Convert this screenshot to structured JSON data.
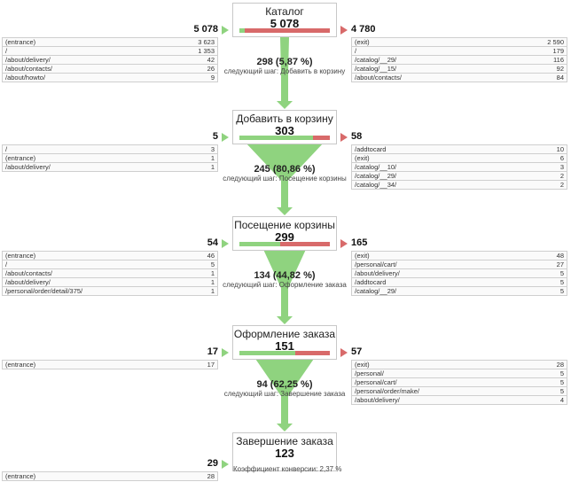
{
  "colors": {
    "accent_green": "#8fd37f",
    "accent_red": "#d86a6a"
  },
  "stages": [
    {
      "name": "Каталог",
      "count": "5 078",
      "green_fraction": 0.058,
      "entries": "5 078",
      "exits": "4 780",
      "entry_rows": [
        [
          "(entrance)",
          "3 623"
        ],
        [
          "/",
          "1 353"
        ],
        [
          "/about/delivery/",
          "42"
        ],
        [
          "/about/contacts/",
          "26"
        ],
        [
          "/about/howto/",
          "9"
        ]
      ],
      "exit_rows": [
        [
          "(exit)",
          "2 590"
        ],
        [
          "/",
          "179"
        ],
        [
          "/catalog/__29/",
          "116"
        ],
        [
          "/catalog/__15/",
          "92"
        ],
        [
          "/about/contacts/",
          "84"
        ]
      ],
      "flow": {
        "value": "298 (5,87 %)",
        "next": "следующий шаг: Добавить в корзину"
      }
    },
    {
      "name": "Добавить в корзину",
      "count": "303",
      "green_fraction": 0.81,
      "entries": "5",
      "exits": "58",
      "entry_rows": [
        [
          "/",
          "3"
        ],
        [
          "(entrance)",
          "1"
        ],
        [
          "/about/delivery/",
          "1"
        ]
      ],
      "exit_rows": [
        [
          "/addtocard",
          "10"
        ],
        [
          "(exit)",
          "6"
        ],
        [
          "/catalog/__10/",
          "3"
        ],
        [
          "/catalog/__29/",
          "2"
        ],
        [
          "/catalog/__34/",
          "2"
        ]
      ],
      "flow": {
        "value": "245 (80,86 %)",
        "next": "следующий шаг: Посещение корзины"
      }
    },
    {
      "name": "Посещение корзины",
      "count": "299",
      "green_fraction": 0.448,
      "entries": "54",
      "exits": "165",
      "entry_rows": [
        [
          "(entrance)",
          "46"
        ],
        [
          "/",
          "5"
        ],
        [
          "/about/contacts/",
          "1"
        ],
        [
          "/about/delivery/",
          "1"
        ],
        [
          "/personal/order/detail/375/",
          "1"
        ]
      ],
      "exit_rows": [
        [
          "(exit)",
          "48"
        ],
        [
          "/personal/cart/",
          "27"
        ],
        [
          "/about/delivery/",
          "5"
        ],
        [
          "/addtocard",
          "5"
        ],
        [
          "/catalog/__29/",
          "5"
        ]
      ],
      "flow": {
        "value": "134 (44,82 %)",
        "next": "следующий шаг: Оформление заказа"
      }
    },
    {
      "name": "Оформление заказа",
      "count": "151",
      "green_fraction": 0.62,
      "entries": "17",
      "exits": "57",
      "entry_rows": [
        [
          "(entrance)",
          "17"
        ]
      ],
      "exit_rows": [
        [
          "(exit)",
          "28"
        ],
        [
          "/personal/",
          "5"
        ],
        [
          "/personal/cart/",
          "5"
        ],
        [
          "/personal/order/make/",
          "5"
        ],
        [
          "/about/delivery/",
          "4"
        ]
      ],
      "flow": {
        "value": "94 (62,25 %)",
        "next": "следующий шаг: Завершение заказа"
      }
    },
    {
      "name": "Завершение заказа",
      "count": "123",
      "entries": "29",
      "entry_rows": [
        [
          "(entrance)",
          "28"
        ]
      ],
      "conversion": "Коэффициент конверсии: 2,37 %"
    }
  ]
}
